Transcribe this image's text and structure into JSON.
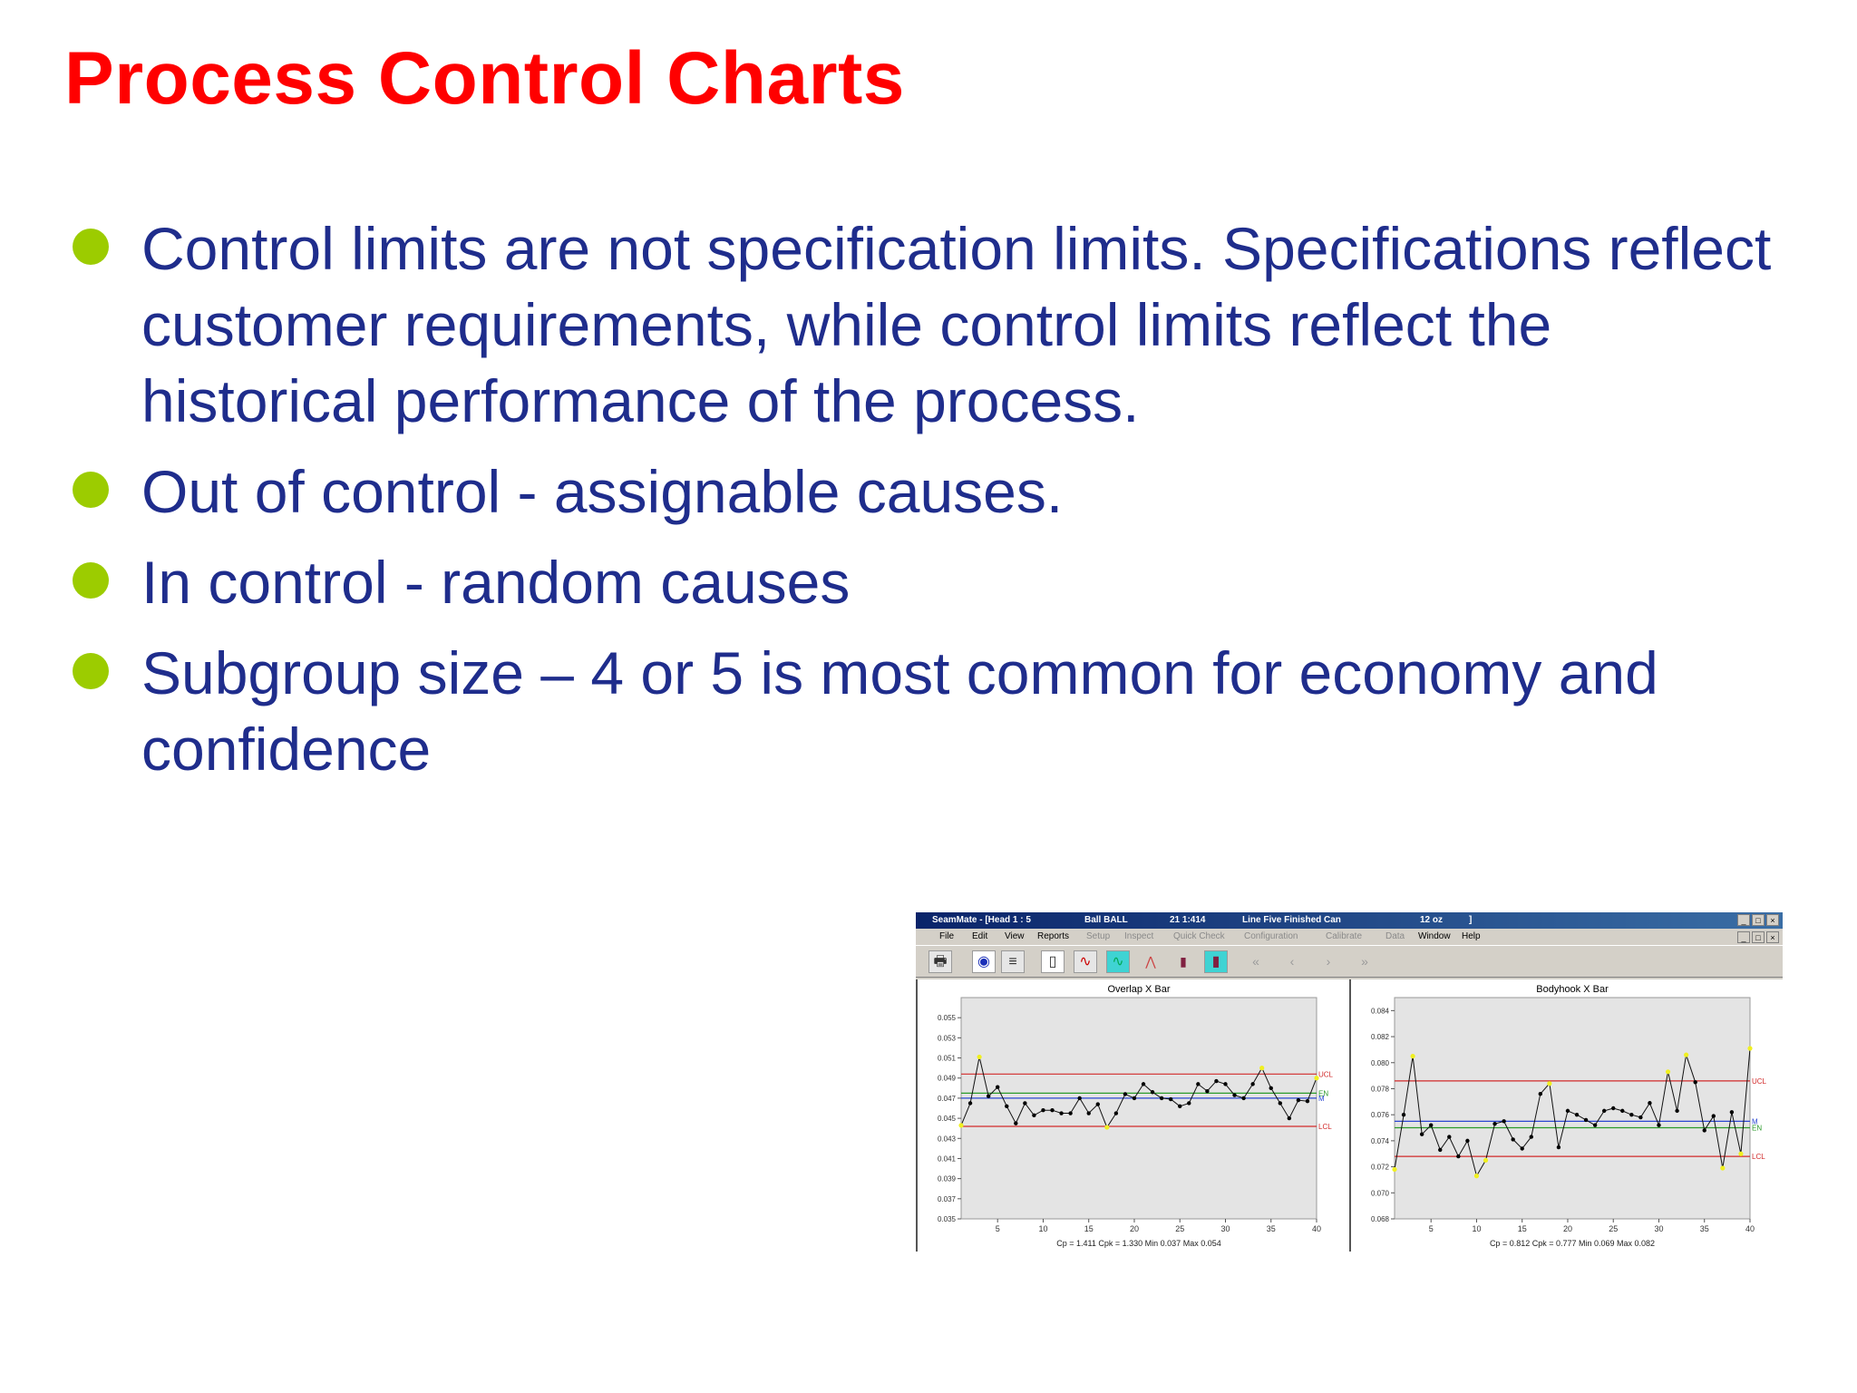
{
  "slide": {
    "title": "Process Control Charts",
    "bullets": [
      "Control limits are not specification limits.  Specifications reflect customer requirements, while control limits reflect the historical performance of the process.",
      "Out of control - assignable causes.",
      "In control - random causes",
      "Subgroup size – 4 or 5 is most common for economy and confidence"
    ],
    "bullet_color": "#9ccc00",
    "title_color": "#ff0000",
    "text_color": "#1f2d8c"
  },
  "app": {
    "titlebar": {
      "app_title": "SeamMate - [Head 1 : 5",
      "customer": "Ball   BALL",
      "id": "21 1:414",
      "line": "Line Five Finished Can",
      "size": "12 oz",
      "bracket": "]"
    },
    "window_buttons": [
      "_",
      "□",
      "×"
    ],
    "menu": [
      {
        "label": "File",
        "enabled": true
      },
      {
        "label": "Edit",
        "enabled": true
      },
      {
        "label": "View",
        "enabled": true
      },
      {
        "label": "Reports",
        "enabled": true
      },
      {
        "label": "Setup",
        "enabled": false
      },
      {
        "label": "Inspect",
        "enabled": false
      },
      {
        "label": "Quick Check",
        "enabled": false
      },
      {
        "label": "Configuration",
        "enabled": false
      },
      {
        "label": "Calibrate",
        "enabled": false
      },
      {
        "label": "Data",
        "enabled": false
      },
      {
        "label": "Window",
        "enabled": true
      },
      {
        "label": "Help",
        "enabled": true
      }
    ],
    "toolbar_icons": [
      "printer-icon",
      "eye-icon",
      "list-icon",
      "page-icon",
      "line-chart-icon",
      "line-chart-active-icon",
      "xy-chart-icon",
      "bar-chart-icon",
      "bar-chart-active-icon",
      "first-icon",
      "prev-icon",
      "next-icon",
      "last-icon"
    ]
  },
  "chart_data": [
    {
      "type": "line",
      "title": "Overlap X Bar",
      "x": [
        1,
        2,
        3,
        4,
        5,
        6,
        7,
        8,
        9,
        10,
        11,
        12,
        13,
        14,
        15,
        16,
        17,
        18,
        19,
        20,
        21,
        22,
        23,
        24,
        25,
        26,
        27,
        28,
        29,
        30,
        31,
        32,
        33,
        34,
        35,
        36,
        37,
        38,
        39,
        40
      ],
      "values": [
        0.0443,
        0.0465,
        0.0511,
        0.0472,
        0.0481,
        0.0462,
        0.0445,
        0.0465,
        0.0453,
        0.0458,
        0.0458,
        0.0455,
        0.0455,
        0.047,
        0.0455,
        0.0464,
        0.0441,
        0.0455,
        0.0474,
        0.047,
        0.0484,
        0.0476,
        0.047,
        0.0469,
        0.0462,
        0.0465,
        0.0484,
        0.0477,
        0.0487,
        0.0484,
        0.0473,
        0.047,
        0.0484,
        0.05,
        0.048,
        0.0465,
        0.045,
        0.0468,
        0.0467,
        0.049
      ],
      "xlim": [
        1,
        40
      ],
      "ylim": [
        0.035,
        0.057
      ],
      "xticks": [
        5,
        10,
        15,
        20,
        25,
        30,
        35,
        40
      ],
      "yticks": [
        0.035,
        0.037,
        0.039,
        0.041,
        0.043,
        0.045,
        0.047,
        0.049,
        0.051,
        0.053,
        0.055
      ],
      "ytick_labels": [
        "0.035",
        "0.037",
        "0.039",
        "0.041",
        "0.043",
        "0.045",
        "0.047",
        "0.049",
        "0.051",
        "0.053",
        "0.055"
      ],
      "control_lines": [
        {
          "label": "UCL",
          "value": 0.0494,
          "color": "#d22a2a"
        },
        {
          "label": "EN",
          "value": 0.0475,
          "color": "#2a9a2a"
        },
        {
          "label": "M",
          "value": 0.047,
          "color": "#2a46d2"
        },
        {
          "label": "LCL",
          "value": 0.0442,
          "color": "#d22a2a"
        }
      ],
      "highlighted_points": [
        1,
        3,
        17,
        34,
        40
      ],
      "stats": "Cp = 1.411  Cpk = 1.330  Min 0.037  Max 0.054"
    },
    {
      "type": "line",
      "title": "Bodyhook X Bar",
      "x": [
        1,
        2,
        3,
        4,
        5,
        6,
        7,
        8,
        9,
        10,
        11,
        12,
        13,
        14,
        15,
        16,
        17,
        18,
        19,
        20,
        21,
        22,
        23,
        24,
        25,
        26,
        27,
        28,
        29,
        30,
        31,
        32,
        33,
        34,
        35,
        36,
        37,
        38,
        39,
        40
      ],
      "values": [
        0.0718,
        0.076,
        0.0805,
        0.0745,
        0.0752,
        0.0733,
        0.0743,
        0.0728,
        0.074,
        0.0713,
        0.0725,
        0.0753,
        0.0755,
        0.0741,
        0.0734,
        0.0743,
        0.0776,
        0.0784,
        0.0735,
        0.0763,
        0.076,
        0.0756,
        0.0752,
        0.0763,
        0.0765,
        0.0763,
        0.076,
        0.0758,
        0.0769,
        0.0752,
        0.0793,
        0.0763,
        0.0806,
        0.0785,
        0.0748,
        0.0759,
        0.0719,
        0.0762,
        0.073,
        0.0811
      ],
      "xlim": [
        1,
        40
      ],
      "ylim": [
        0.068,
        0.085
      ],
      "xticks": [
        5,
        10,
        15,
        20,
        25,
        30,
        35,
        40
      ],
      "yticks": [
        0.068,
        0.07,
        0.072,
        0.074,
        0.076,
        0.078,
        0.08,
        0.082,
        0.084
      ],
      "ytick_labels": [
        "0.068",
        "0.070",
        "0.072",
        "0.074",
        "0.076",
        "0.078",
        "0.080",
        "0.082",
        "0.084"
      ],
      "control_lines": [
        {
          "label": "UCL",
          "value": 0.0786,
          "color": "#d22a2a"
        },
        {
          "label": "M",
          "value": 0.0755,
          "color": "#2a46d2"
        },
        {
          "label": "EN",
          "value": 0.075,
          "color": "#2a9a2a"
        },
        {
          "label": "LCL",
          "value": 0.0728,
          "color": "#d22a2a"
        }
      ],
      "highlighted_points": [
        1,
        3,
        10,
        11,
        18,
        31,
        33,
        37,
        39,
        40
      ],
      "stats": "Cp = 0.812  Cpk = 0.777  Min 0.069  Max 0.082"
    }
  ]
}
